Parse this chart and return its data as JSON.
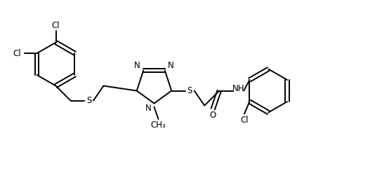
{
  "background_color": "#ffffff",
  "line_color": "#000000",
  "text_color": "#000000",
  "line_width": 1.4,
  "font_size": 8.5,
  "figsize": [
    5.54,
    2.64
  ],
  "dpi": 100,
  "xlim": [
    0,
    11.0
  ],
  "ylim": [
    0,
    5.28
  ]
}
